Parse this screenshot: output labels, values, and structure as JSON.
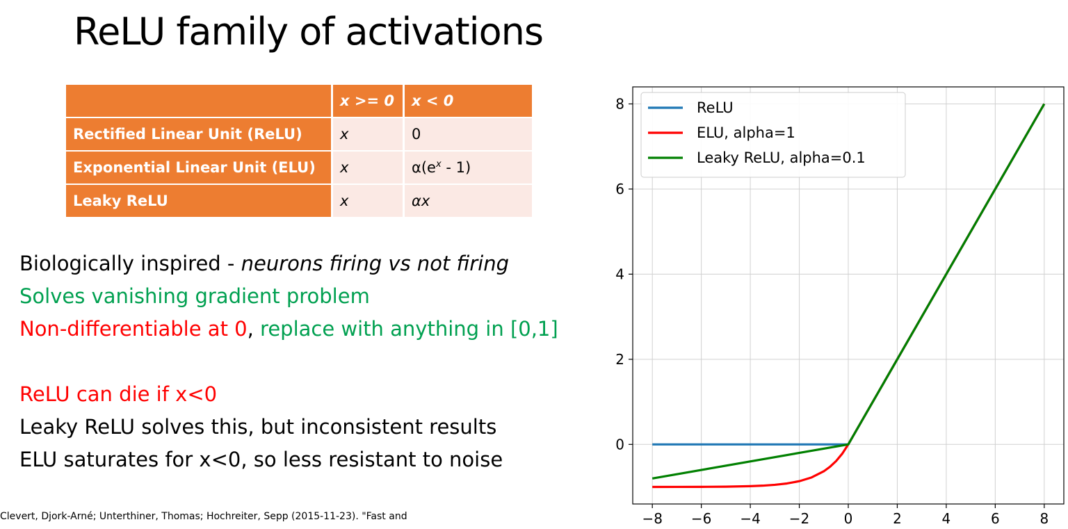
{
  "slide": {
    "title": "ReLU family of activations"
  },
  "table": {
    "headers": [
      "",
      "x >= 0",
      "x < 0"
    ],
    "rows": [
      {
        "name": "Rectified Linear Unit (ReLU)",
        "pos": "x",
        "neg": "0"
      },
      {
        "name": "Exponential Linear Unit (ELU)",
        "pos": "x",
        "neg_prefix": "α(e",
        "neg_sup": "x",
        "neg_suffix": " - 1)"
      },
      {
        "name": "Leaky ReLU",
        "pos": "x",
        "neg": "αx"
      }
    ]
  },
  "text": {
    "line1_a": "Biologically inspired - ",
    "line1_b": "neurons firing vs not firing",
    "line2": "Solves vanishing gradient problem",
    "line3_a": "Non-differentiable at 0",
    "line3_b": ", ",
    "line3_c": "replace with anything in [0,1]",
    "line4": "ReLU can die if x<0",
    "line5": "Leaky ReLU solves this, but inconsistent results",
    "line6": "ELU saturates for x<0, so less resistant to noise"
  },
  "citation": "Clevert, Djork-Arné; Unterthiner, Thomas; Hochreiter, Sepp (2015-11-23). \"Fast and",
  "chart_data": {
    "type": "line",
    "xlim": [
      -8.8,
      8.8
    ],
    "ylim": [
      -1.4,
      8.4
    ],
    "xticks": [
      -8,
      -6,
      -4,
      -2,
      0,
      2,
      4,
      6,
      8
    ],
    "xtick_labels": [
      "−8",
      "−6",
      "−4",
      "−2",
      "0",
      "2",
      "4",
      "6",
      "8"
    ],
    "yticks": [
      0,
      2,
      4,
      6,
      8
    ],
    "ytick_labels": [
      "0",
      "2",
      "4",
      "6",
      "8"
    ],
    "grid": true,
    "legend_position": "top-left",
    "series": [
      {
        "name": "ReLU",
        "color": "#1f77b4",
        "x": [
          -8,
          0,
          8
        ],
        "y": [
          0,
          0,
          8
        ]
      },
      {
        "name": "ELU, alpha=1",
        "color": "#ff0000",
        "x": [
          -8,
          -7,
          -6,
          -5,
          -4,
          -3.5,
          -3,
          -2.5,
          -2,
          -1.5,
          -1,
          -0.75,
          -0.5,
          -0.25,
          0,
          8
        ],
        "y": [
          -0.9997,
          -0.9991,
          -0.9975,
          -0.9933,
          -0.9817,
          -0.9698,
          -0.9502,
          -0.9179,
          -0.8647,
          -0.7769,
          -0.6321,
          -0.5276,
          -0.3935,
          -0.2212,
          0,
          8
        ]
      },
      {
        "name": "Leaky ReLU, alpha=0.1",
        "color": "#008000",
        "x": [
          -8,
          0,
          8
        ],
        "y": [
          -0.8,
          0,
          8
        ]
      }
    ]
  }
}
